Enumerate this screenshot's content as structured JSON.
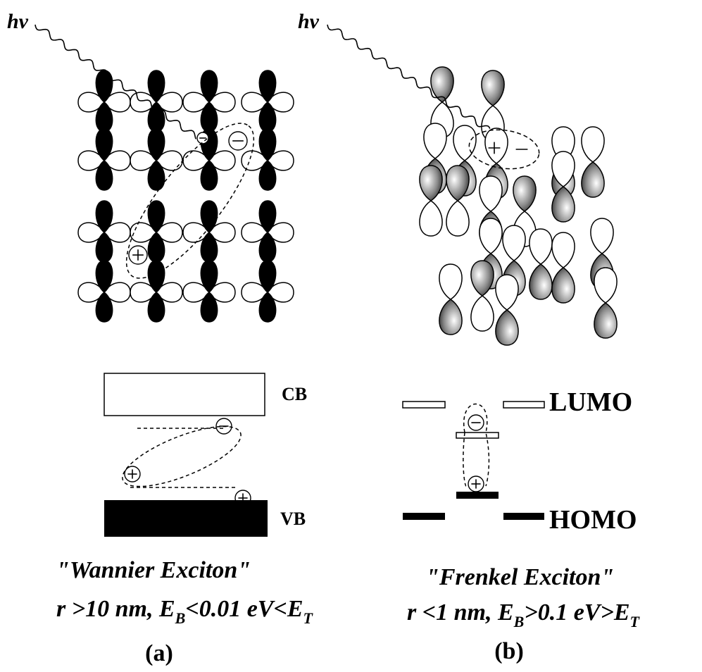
{
  "panels": [
    {
      "photon": "hv",
      "band_upper": "CB",
      "band_lower": "VB",
      "title": "\"Wannier Exciton\"",
      "condition": {
        "prefix": "r >10 nm, E",
        "sub1": "B",
        "mid": "<0.01 eV<E",
        "sub2": "T"
      },
      "label": "(a)"
    },
    {
      "photon": "hv",
      "band_upper": "LUMO",
      "band_lower": "HOMO",
      "title": "\"Frenkel Exciton\"",
      "condition": {
        "prefix": "r <1 nm, E",
        "sub1": "B",
        "mid": ">0.1 eV>E",
        "sub2": "T"
      },
      "label": "(b)"
    }
  ]
}
